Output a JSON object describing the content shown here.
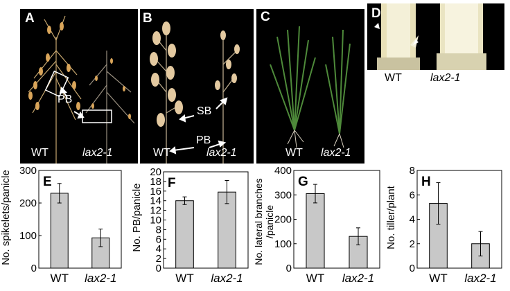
{
  "panels": {
    "A": {
      "letter": "A",
      "wt": "WT",
      "mutant": "lax2-1",
      "pb": "PB"
    },
    "B": {
      "letter": "B",
      "wt": "WT",
      "mutant": "lax2-1",
      "pb": "PB",
      "sb": "SB"
    },
    "C": {
      "letter": "C",
      "wt": "WT",
      "mutant": "lax2-1"
    },
    "D": {
      "letter": "D",
      "wt": "WT",
      "mutant": "lax2-1"
    }
  },
  "chart_data": [
    {
      "type": "bar",
      "panel": "E",
      "categories": [
        "WT",
        "lax2-1"
      ],
      "values": [
        230,
        93
      ],
      "errors": [
        30,
        27
      ],
      "ylabel": "No. spikelets/panicle",
      "ylim": [
        0,
        300
      ],
      "yticks": [
        0,
        100,
        200,
        300
      ]
    },
    {
      "type": "bar",
      "panel": "F",
      "categories": [
        "WT",
        "lax2-1"
      ],
      "values": [
        14,
        15.8
      ],
      "errors": [
        0.8,
        2.4
      ],
      "ylabel": "No. PB/panicle",
      "ylim": [
        0,
        20
      ],
      "yticks": [
        0,
        2,
        4,
        6,
        8,
        10,
        12,
        14,
        16,
        18,
        20
      ]
    },
    {
      "type": "bar",
      "panel": "G",
      "categories": [
        "WT",
        "lax2-1"
      ],
      "values": [
        305,
        130
      ],
      "errors": [
        38,
        35
      ],
      "ylabel": "No. lateral branches /panicle",
      "ylim": [
        0,
        400
      ],
      "yticks": [
        0,
        100,
        200,
        300,
        400
      ]
    },
    {
      "type": "bar",
      "panel": "H",
      "categories": [
        "WT",
        "lax2-1"
      ],
      "values": [
        5.3,
        2.0
      ],
      "errors": [
        1.7,
        1.0
      ],
      "ylabel": "No. tiller/plant",
      "ylim": [
        0,
        8
      ],
      "yticks": [
        0,
        2,
        4,
        6,
        8
      ]
    }
  ]
}
